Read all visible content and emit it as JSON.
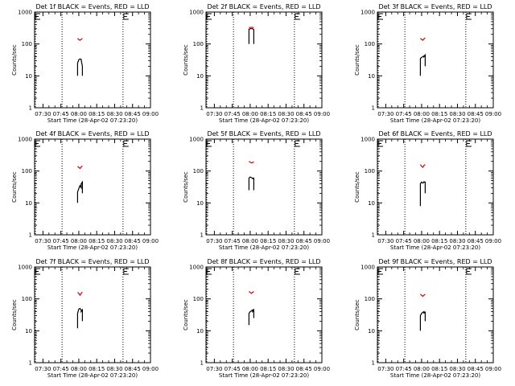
{
  "chart_data": [
    {
      "type": "line",
      "title": "Det 1f BLACK = Events, RED = LLD",
      "xlabel": "Start Time (28-Apr-02 07:23:20)",
      "ylabel": "Counts/sec",
      "yscale": "log",
      "ylim": [
        1,
        1000
      ],
      "xlim": [
        "07:23",
        "09:00"
      ],
      "x_ticks": [
        "07:30",
        "07:45",
        "08:00",
        "08:15",
        "08:30",
        "08:45",
        "09:00"
      ],
      "y_ticks": [
        "1",
        "10",
        "100",
        "1000"
      ],
      "markers_x": [
        "07:23",
        "07:46",
        "08:37"
      ],
      "series": [
        {
          "color": "#000000",
          "x": [
            "07:59",
            "07:59",
            "08:00",
            "08:01",
            "08:02",
            "08:02",
            "08:03",
            "08:03"
          ],
          "y": [
            10,
            25,
            32,
            34,
            33,
            31,
            20,
            10
          ]
        },
        {
          "color": "#d40000",
          "x": [
            "07:59",
            "08:00",
            "08:01",
            "08:02",
            "08:03"
          ],
          "y": [
            150,
            138,
            130,
            140,
            150
          ]
        }
      ]
    },
    {
      "type": "line",
      "title": "Det 2f BLACK = Events, RED = LLD",
      "xlabel": "Start Time (28-Apr-02 07:23:20)",
      "ylabel": "Counts/sec",
      "yscale": "log",
      "ylim": [
        1,
        1000
      ],
      "xlim": [
        "07:23",
        "09:00"
      ],
      "x_ticks": [
        "07:30",
        "07:45",
        "08:00",
        "08:15",
        "08:30",
        "08:45",
        "09:00"
      ],
      "y_ticks": [
        "1",
        "10",
        "100",
        "1000"
      ],
      "markers_x": [
        "07:23",
        "07:46",
        "08:37"
      ],
      "series": [
        {
          "color": "#000000",
          "x": [
            "07:59",
            "07:59",
            "08:00",
            "08:01",
            "08:02",
            "08:02",
            "08:03",
            "08:03"
          ],
          "y": [
            100,
            290,
            300,
            300,
            300,
            300,
            280,
            100
          ]
        },
        {
          "color": "#d40000",
          "x": [
            "07:59",
            "08:01",
            "08:03"
          ],
          "y": [
            330,
            330,
            330
          ]
        }
      ]
    },
    {
      "type": "line",
      "title": "Det 3f BLACK = Events, RED = LLD",
      "xlabel": "Start Time (28-Apr-02 07:23:20)",
      "ylabel": "Counts/sec",
      "yscale": "log",
      "ylim": [
        1,
        1000
      ],
      "xlim": [
        "07:23",
        "09:00"
      ],
      "x_ticks": [
        "07:30",
        "07:45",
        "08:00",
        "08:15",
        "08:30",
        "08:45",
        "09:00"
      ],
      "y_ticks": [
        "1",
        "10",
        "100",
        "1000"
      ],
      "markers_x": [
        "07:23",
        "07:46",
        "08:37"
      ],
      "series": [
        {
          "color": "#000000",
          "x": [
            "07:59",
            "07:59",
            "08:00",
            "08:01",
            "08:02",
            "08:02",
            "08:03",
            "08:03"
          ],
          "y": [
            10,
            35,
            38,
            40,
            42,
            40,
            45,
            20
          ]
        },
        {
          "color": "#d40000",
          "x": [
            "07:59",
            "08:00",
            "08:01",
            "08:02",
            "08:03"
          ],
          "y": [
            150,
            140,
            130,
            145,
            155
          ]
        }
      ]
    },
    {
      "type": "line",
      "title": "Det 4f BLACK = Events, RED = LLD",
      "xlabel": "Start Time (28-Apr-02 07:23:20)",
      "ylabel": "Counts/sec",
      "yscale": "log",
      "ylim": [
        1,
        1000
      ],
      "xlim": [
        "07:23",
        "09:00"
      ],
      "x_ticks": [
        "07:30",
        "07:45",
        "08:00",
        "08:15",
        "08:30",
        "08:45",
        "09:00"
      ],
      "y_ticks": [
        "1",
        "10",
        "100",
        "1000"
      ],
      "markers_x": [
        "07:23",
        "07:46",
        "08:37"
      ],
      "series": [
        {
          "color": "#000000",
          "x": [
            "07:59",
            "07:59",
            "08:00",
            "08:01",
            "08:02",
            "08:02",
            "08:03",
            "08:03"
          ],
          "y": [
            10,
            22,
            28,
            35,
            30,
            40,
            45,
            20
          ]
        },
        {
          "color": "#d40000",
          "x": [
            "07:59",
            "08:00",
            "08:01",
            "08:02",
            "08:03"
          ],
          "y": [
            140,
            130,
            120,
            135,
            145
          ]
        }
      ]
    },
    {
      "type": "line",
      "title": "Det 5f BLACK = Events, RED = LLD",
      "xlabel": "Start Time (28-Apr-02 07:23:20)",
      "ylabel": "Counts/sec",
      "yscale": "log",
      "ylim": [
        1,
        1000
      ],
      "xlim": [
        "07:23",
        "09:00"
      ],
      "x_ticks": [
        "07:30",
        "07:45",
        "08:00",
        "08:15",
        "08:30",
        "08:45",
        "09:00"
      ],
      "y_ticks": [
        "1",
        "10",
        "100",
        "1000"
      ],
      "markers_x": [
        "07:23",
        "07:46",
        "08:37"
      ],
      "series": [
        {
          "color": "#000000",
          "x": [
            "07:59",
            "07:59",
            "08:00",
            "08:01",
            "08:02",
            "08:02",
            "08:03",
            "08:03"
          ],
          "y": [
            25,
            60,
            65,
            62,
            60,
            58,
            60,
            25
          ]
        },
        {
          "color": "#d40000",
          "x": [
            "07:59",
            "08:00",
            "08:01",
            "08:02",
            "08:03"
          ],
          "y": [
            200,
            190,
            180,
            185,
            195
          ]
        }
      ]
    },
    {
      "type": "line",
      "title": "Det 6f BLACK = Events, RED = LLD",
      "xlabel": "Start Time (28-Apr-02 07:23:20)",
      "ylabel": "Counts/sec",
      "yscale": "log",
      "ylim": [
        1,
        1000
      ],
      "xlim": [
        "07:23",
        "09:00"
      ],
      "x_ticks": [
        "07:30",
        "07:45",
        "08:00",
        "08:15",
        "08:30",
        "08:45",
        "09:00"
      ],
      "y_ticks": [
        "1",
        "10",
        "100",
        "1000"
      ],
      "markers_x": [
        "07:23",
        "07:46",
        "08:37"
      ],
      "series": [
        {
          "color": "#000000",
          "x": [
            "07:59",
            "07:59",
            "08:00",
            "08:01",
            "08:02",
            "08:02",
            "08:03",
            "08:03"
          ],
          "y": [
            8,
            40,
            45,
            42,
            44,
            46,
            45,
            20
          ]
        },
        {
          "color": "#d40000",
          "x": [
            "07:59",
            "08:00",
            "08:01",
            "08:02",
            "08:03"
          ],
          "y": [
            160,
            140,
            130,
            150,
            160
          ]
        }
      ]
    },
    {
      "type": "line",
      "title": "Det 7f BLACK = Events, RED = LLD",
      "xlabel": "Start Time (28-Apr-02 07:23:20)",
      "ylabel": "Counts/sec",
      "yscale": "log",
      "ylim": [
        1,
        1000
      ],
      "xlim": [
        "07:23",
        "09:00"
      ],
      "x_ticks": [
        "07:30",
        "07:45",
        "08:00",
        "08:15",
        "08:30",
        "08:45",
        "09:00"
      ],
      "y_ticks": [
        "1",
        "10",
        "100",
        "1000"
      ],
      "markers_x": [
        "07:23",
        "07:46",
        "08:37"
      ],
      "series": [
        {
          "color": "#000000",
          "x": [
            "07:59",
            "07:59",
            "08:00",
            "08:01",
            "08:02",
            "08:02",
            "08:03",
            "08:03"
          ],
          "y": [
            12,
            35,
            48,
            50,
            45,
            40,
            45,
            20
          ]
        },
        {
          "color": "#d40000",
          "x": [
            "07:59",
            "08:00",
            "08:01",
            "08:02",
            "08:03"
          ],
          "y": [
            160,
            150,
            130,
            150,
            165
          ]
        }
      ]
    },
    {
      "type": "line",
      "title": "Det 8f BLACK = Events, RED = LLD",
      "xlabel": "Start Time (28-Apr-02 07:23:20)",
      "ylabel": "Counts/sec",
      "yscale": "log",
      "ylim": [
        1,
        1000
      ],
      "xlim": [
        "07:23",
        "09:00"
      ],
      "x_ticks": [
        "07:30",
        "07:45",
        "08:00",
        "08:15",
        "08:30",
        "08:45",
        "09:00"
      ],
      "y_ticks": [
        "1",
        "10",
        "100",
        "1000"
      ],
      "markers_x": [
        "07:23",
        "07:46",
        "08:37"
      ],
      "series": [
        {
          "color": "#000000",
          "x": [
            "07:59",
            "07:59",
            "08:00",
            "08:01",
            "08:02",
            "08:02",
            "08:03",
            "08:03"
          ],
          "y": [
            15,
            35,
            40,
            42,
            45,
            40,
            45,
            25
          ]
        },
        {
          "color": "#d40000",
          "x": [
            "07:59",
            "08:00",
            "08:01",
            "08:02",
            "08:03"
          ],
          "y": [
            170,
            160,
            150,
            160,
            170
          ]
        }
      ]
    },
    {
      "type": "line",
      "title": "Det 9f BLACK = Events, RED = LLD",
      "xlabel": "Start Time (28-Apr-02 07:23:20)",
      "ylabel": "Counts/sec",
      "yscale": "log",
      "ylim": [
        1,
        1000
      ],
      "xlim": [
        "07:23",
        "09:00"
      ],
      "x_ticks": [
        "07:30",
        "07:45",
        "08:00",
        "08:15",
        "08:30",
        "08:45",
        "09:00"
      ],
      "y_ticks": [
        "1",
        "10",
        "100",
        "1000"
      ],
      "markers_x": [
        "07:23",
        "07:46",
        "08:37"
      ],
      "series": [
        {
          "color": "#000000",
          "x": [
            "07:59",
            "07:59",
            "08:00",
            "08:01",
            "08:02",
            "08:02",
            "08:03",
            "08:03"
          ],
          "y": [
            10,
            30,
            35,
            38,
            40,
            36,
            38,
            20
          ]
        },
        {
          "color": "#d40000",
          "x": [
            "07:59",
            "08:00",
            "08:01",
            "08:02",
            "08:03"
          ],
          "y": [
            140,
            130,
            120,
            130,
            140
          ]
        }
      ]
    }
  ]
}
